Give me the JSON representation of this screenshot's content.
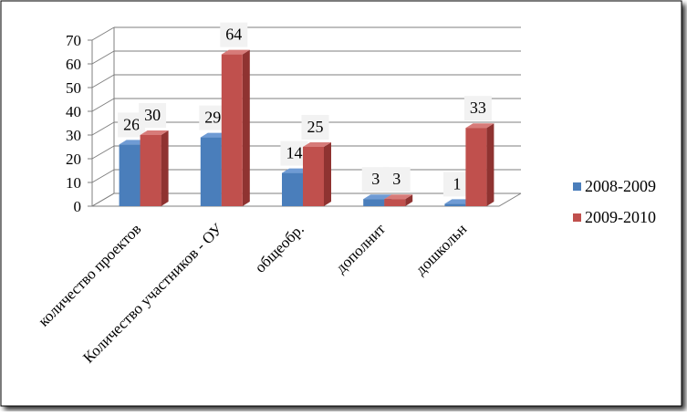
{
  "chart_data": {
    "type": "bar",
    "categories": [
      "количество проектов",
      "Количество участников - ОУ",
      "общеобр.",
      "дополнит",
      "дошкольн"
    ],
    "series": [
      {
        "name": "2008-2009",
        "values": [
          26,
          29,
          14,
          3,
          1
        ]
      },
      {
        "name": "2009-2010",
        "values": [
          30,
          64,
          25,
          3,
          33
        ]
      }
    ],
    "ylim": [
      0,
      70
    ],
    "yticks": [
      0,
      10,
      20,
      30,
      40,
      50,
      60,
      70
    ],
    "grid": true,
    "legend": "right",
    "data_labels": true,
    "colors": {
      "2008-2009": {
        "front": "#4a7ebb",
        "top": "#6f9bd4",
        "side": "#2f5d95"
      },
      "2009-2010": {
        "front": "#c0504d",
        "top": "#d77b79",
        "side": "#8f3331"
      },
      "grid": "#7f7f7f",
      "frame_shadow": "#000000"
    }
  }
}
